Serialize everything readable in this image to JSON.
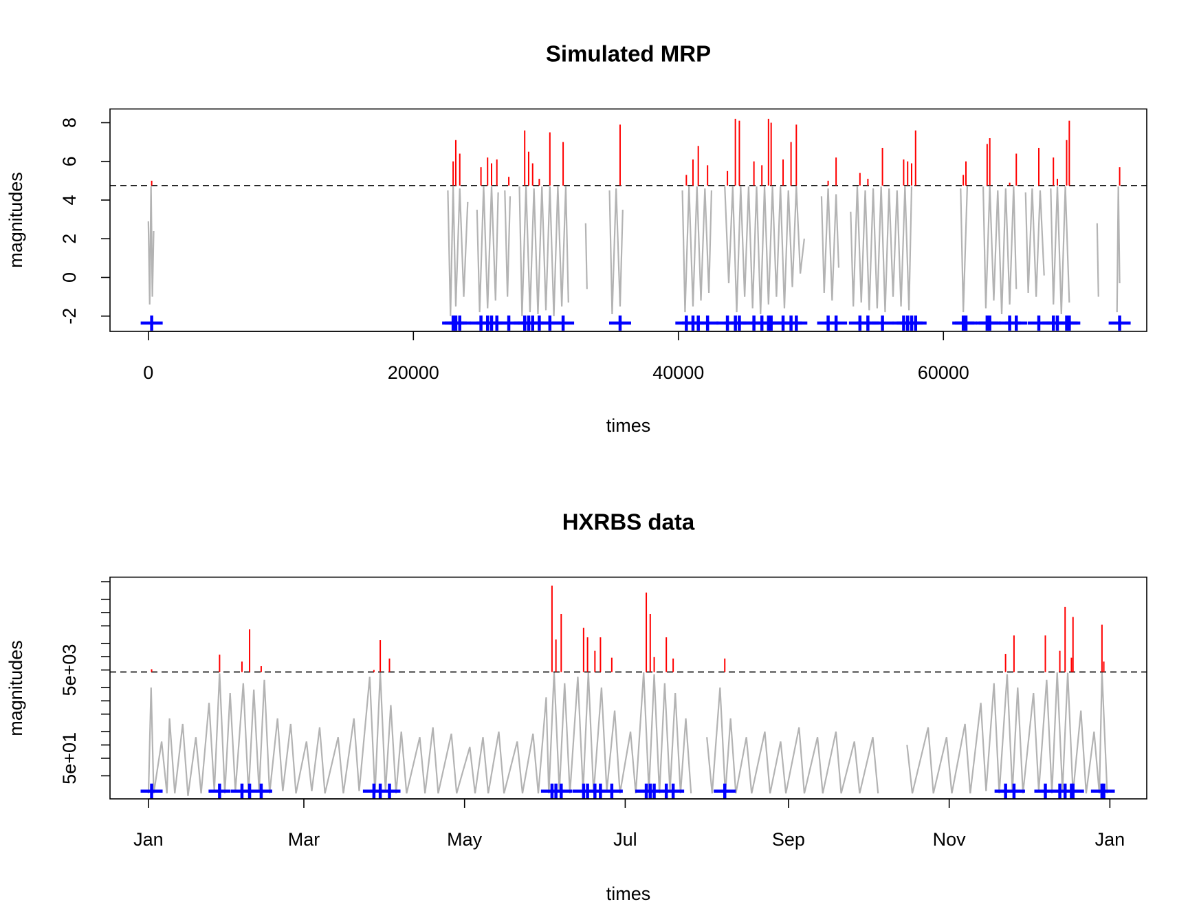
{
  "chart_data": [
    {
      "type": "line",
      "title": "Simulated MRP",
      "x_label": "times",
      "y_label": "magnitudes",
      "log_y": false,
      "line_color": "#b3b3b3",
      "exceedance_color": "#ff0000",
      "marker_color": "#0000ff",
      "xlim": [
        -2896,
        75345
      ],
      "ylim": [
        -2.79,
        8.71
      ],
      "xticks": [
        0,
        20000,
        40000,
        60000
      ],
      "yticks": [
        -2,
        0,
        2,
        4,
        6,
        8
      ],
      "threshold": 4.75,
      "marker_y": -2.36,
      "x": [
        0,
        100,
        200,
        300,
        400,
        1000,
        22600,
        22800,
        23000,
        23200,
        23500,
        23800,
        24100,
        24400,
        24800,
        25000,
        25300,
        25600,
        25900,
        26200,
        26400,
        26600,
        26900,
        27100,
        27300,
        27500,
        28000,
        28200,
        28500,
        28800,
        29100,
        29400,
        29700,
        30000,
        30300,
        30600,
        30900,
        31200,
        31500,
        31700,
        32200,
        33000,
        33100,
        34000,
        34800,
        35000,
        35300,
        35600,
        35800,
        38000,
        40300,
        40500,
        40800,
        41100,
        41400,
        41700,
        42000,
        42300,
        42500,
        43000,
        43500,
        43800,
        44100,
        44400,
        44700,
        45000,
        45300,
        45600,
        45900,
        46200,
        46500,
        46800,
        47100,
        47400,
        47700,
        48000,
        48300,
        48600,
        48900,
        49200,
        49500,
        50300,
        50800,
        51000,
        51300,
        51600,
        51900,
        52100,
        52600,
        53000,
        53200,
        53500,
        53800,
        54100,
        54400,
        54700,
        55000,
        55300,
        55600,
        55900,
        56200,
        56500,
        56800,
        57100,
        57400,
        57600,
        59000,
        61300,
        61500,
        61800,
        62300,
        63000,
        63200,
        63500,
        63800,
        64100,
        64400,
        64700,
        65000,
        65300,
        65500,
        65900,
        66200,
        66400,
        66700,
        67000,
        67300,
        67600,
        67900,
        68100,
        68300,
        68600,
        68900,
        69200,
        69500,
        70500,
        71600,
        71700,
        72500,
        73100,
        73200,
        73300
      ],
      "values": [
        2.9,
        -1.4,
        4.7,
        -1.0,
        2.4,
        null,
        4.5,
        -2.0,
        4.7,
        -1.5,
        4.6,
        -1.0,
        3.9,
        null,
        3.5,
        -1.8,
        4.7,
        -1.6,
        4.7,
        -1.2,
        4.4,
        null,
        4.5,
        -1.0,
        4.2,
        null,
        4.7,
        -2.0,
        4.7,
        -1.8,
        4.6,
        -1.9,
        4.7,
        -1.7,
        4.7,
        -2.0,
        4.7,
        -1.5,
        4.7,
        -1.3,
        null,
        2.8,
        -0.6,
        null,
        4.5,
        -1.9,
        4.6,
        -1.5,
        3.5,
        null,
        4.5,
        -1.8,
        4.7,
        -1.5,
        4.7,
        -1.2,
        4.6,
        -0.8,
        4.5,
        null,
        4.7,
        -0.3,
        4.7,
        -1.8,
        4.7,
        -1.0,
        4.7,
        -1.6,
        4.7,
        -1.9,
        4.7,
        -1.4,
        4.7,
        -1.0,
        4.7,
        -1.6,
        4.5,
        -0.5,
        4.7,
        0.2,
        2.0,
        null,
        4.2,
        -0.8,
        4.6,
        -1.2,
        4.3,
        0.5,
        null,
        3.4,
        -1.5,
        4.7,
        -1.3,
        4.5,
        -1.7,
        4.6,
        -1.6,
        4.7,
        -1.8,
        4.6,
        -1.0,
        4.5,
        -1.5,
        4.7,
        -1.7,
        4.7,
        null,
        4.6,
        -1.8,
        4.7,
        null,
        4.7,
        -1.6,
        4.7,
        -1.2,
        4.5,
        -1.9,
        4.6,
        -1.4,
        4.7,
        -0.6,
        null,
        4.4,
        -0.8,
        4.6,
        -1.0,
        4.5,
        0.1,
        null,
        4.6,
        -1.4,
        4.7,
        -1.9,
        4.7,
        -1.3,
        null,
        2.8,
        -1.0,
        null,
        -1.8,
        4.7,
        -0.3
      ],
      "exceedances": {
        "x": [
          250,
          23000,
          23200,
          23500,
          25100,
          25600,
          25900,
          26300,
          27200,
          28400,
          28700,
          29000,
          29500,
          30300,
          31300,
          35600,
          40600,
          41100,
          41500,
          42200,
          43700,
          44300,
          44600,
          45700,
          46300,
          46800,
          47000,
          47900,
          48500,
          48900,
          51300,
          51900,
          53700,
          54300,
          55400,
          57000,
          57300,
          57600,
          57900,
          61500,
          61700,
          63300,
          63500,
          65000,
          65500,
          67200,
          68300,
          68600,
          69300,
          69500,
          73300
        ],
        "values": [
          5.0,
          6.0,
          7.1,
          6.4,
          5.7,
          6.2,
          5.9,
          6.1,
          5.2,
          7.6,
          6.5,
          5.9,
          5.1,
          7.5,
          7.0,
          7.9,
          5.3,
          6.1,
          6.8,
          5.8,
          5.5,
          8.2,
          8.1,
          6.0,
          5.8,
          8.2,
          8.0,
          6.1,
          7.0,
          7.9,
          5.0,
          6.2,
          5.4,
          5.1,
          6.7,
          6.1,
          6.0,
          5.9,
          7.6,
          5.3,
          6.0,
          6.9,
          7.2,
          4.9,
          6.4,
          6.7,
          6.2,
          5.1,
          7.1,
          8.1,
          5.7
        ]
      }
    },
    {
      "type": "line",
      "title": "HXRBS data",
      "x_label": "times",
      "y_label": "magnitudes",
      "log_y": true,
      "line_color": "#b3b3b3",
      "exceedance_color": "#ff0000",
      "marker_color": "#0000ff",
      "xlim": [
        -14.6,
        379
      ],
      "ylim": [
        6,
        635000
      ],
      "xticks": [
        {
          "value": 0,
          "label": "Jan"
        },
        {
          "value": 59,
          "label": "Mar"
        },
        {
          "value": 120,
          "label": "May"
        },
        {
          "value": 181,
          "label": "Jul"
        },
        {
          "value": 243,
          "label": "Sep"
        },
        {
          "value": 304,
          "label": "Nov"
        },
        {
          "value": 365,
          "label": "Jan"
        }
      ],
      "yticks": [
        {
          "value": 50,
          "label": "5e+01"
        },
        {
          "value": 5000,
          "label": "5e+03"
        }
      ],
      "yminorticks": [
        20,
        100,
        200,
        500,
        1000,
        2000,
        10000,
        20000,
        50000,
        100000,
        200000,
        500000
      ],
      "threshold": 4500,
      "marker_y": 9,
      "x": [
        0,
        1,
        2,
        5,
        7,
        8,
        10,
        13,
        15,
        18,
        20,
        23,
        25,
        27,
        29,
        31,
        33,
        36,
        38,
        40,
        42,
        44,
        46,
        49,
        51,
        54,
        56,
        60,
        62,
        65,
        67,
        72,
        74,
        78,
        80,
        84,
        86,
        88,
        90,
        92,
        94,
        96,
        98,
        103,
        105,
        108,
        110,
        115,
        117,
        122,
        124,
        127,
        129,
        133,
        135,
        140,
        142,
        146,
        148,
        151,
        152,
        154,
        156,
        158,
        160,
        163,
        165,
        167,
        169,
        172,
        174,
        177,
        179,
        183,
        185,
        188,
        190,
        192,
        194,
        196,
        198,
        200,
        202,
        204,
        206,
        209,
        212,
        214,
        217,
        219,
        221,
        223,
        227,
        229,
        234,
        236,
        240,
        242,
        247,
        249,
        254,
        256,
        261,
        263,
        268,
        270,
        275,
        277,
        282,
        288,
        290,
        296,
        298,
        303,
        305,
        310,
        312,
        316,
        318,
        321,
        323,
        326,
        328,
        330,
        332,
        336,
        338,
        341,
        343,
        345,
        347,
        349,
        351,
        354,
        356,
        359,
        361,
        362,
        364
      ],
      "values": [
        8,
        2000,
        8,
        120,
        8,
        400,
        8,
        300,
        7,
        150,
        8,
        900,
        9,
        4200,
        8,
        1500,
        9,
        2500,
        8,
        1800,
        9,
        3000,
        8,
        400,
        9,
        300,
        8,
        120,
        9,
        250,
        8,
        150,
        8,
        400,
        9,
        3500,
        8,
        4400,
        9,
        800,
        8,
        200,
        8,
        150,
        8,
        250,
        8,
        180,
        8,
        90,
        8,
        150,
        8,
        200,
        8,
        120,
        8,
        180,
        8,
        1200,
        8,
        4400,
        9,
        2500,
        8,
        3500,
        9,
        4300,
        8,
        2000,
        9,
        600,
        8,
        200,
        8,
        4400,
        9,
        4000,
        8,
        2500,
        9,
        1500,
        8,
        400,
        8,
        null,
        150,
        8,
        2000,
        8,
        400,
        8,
        150,
        8,
        200,
        8,
        120,
        8,
        250,
        8,
        150,
        8,
        200,
        8,
        120,
        8,
        150,
        8,
        null,
        100,
        8,
        250,
        8,
        150,
        8,
        300,
        8,
        900,
        9,
        2500,
        8,
        4000,
        9,
        2000,
        8,
        1500,
        9,
        3000,
        8,
        4400,
        9,
        4300,
        8,
        600,
        8,
        200,
        8,
        4400,
        8
      ],
      "exceedances": {
        "x": [
          1.2,
          27,
          35.5,
          38.4,
          42.8,
          85.6,
          88,
          91.5,
          153.2,
          154.7,
          156.7,
          165.2,
          166.7,
          169.5,
          171.6,
          175.9,
          189,
          190.5,
          192,
          196.6,
          199.2,
          218.8,
          325.4,
          328.6,
          340.5,
          346,
          348,
          350.4,
          351,
          362,
          362.7
        ],
        "values": [
          5200,
          11100,
          7750,
          41800,
          6100,
          5000,
          23800,
          9100,
          409000,
          24500,
          93000,
          45300,
          27500,
          13600,
          27500,
          9500,
          285000,
          93000,
          9800,
          27500,
          9100,
          9100,
          11600,
          30300,
          30300,
          13600,
          134000,
          9500,
          79500,
          53100,
          7750
        ]
      }
    }
  ]
}
